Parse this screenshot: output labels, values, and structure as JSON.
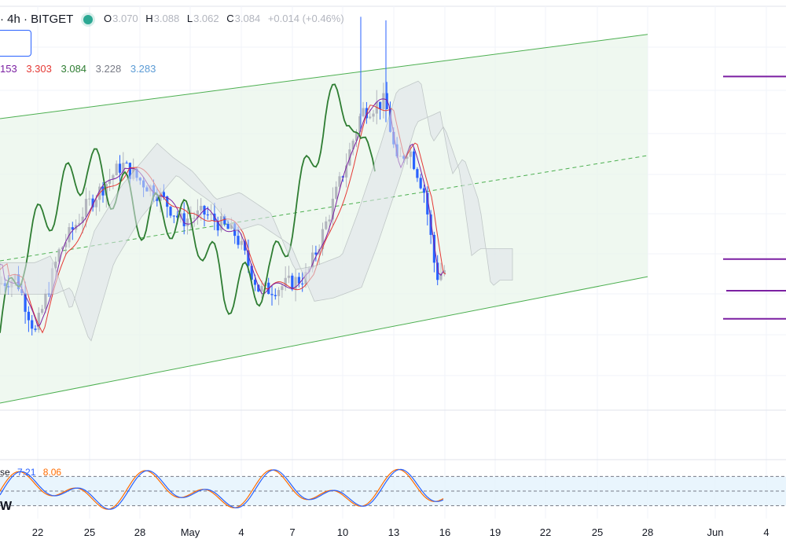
{
  "header": {
    "symbol": "· 4h · BITGET",
    "ohlc": {
      "o": "3.070",
      "h": "3.088",
      "l": "3.062",
      "c": "3.084",
      "chg": "+0.014 (+0.46%)"
    },
    "indicator_values": [
      {
        "text": "153",
        "color": "#7b1fa2"
      },
      {
        "text": "3.303",
        "color": "#e53935"
      },
      {
        "text": "3.084",
        "color": "#2e7d32"
      },
      {
        "text": "3.228",
        "color": "#787b86"
      },
      {
        "text": "3.283",
        "color": "#5b9bd5"
      }
    ]
  },
  "oscillator": {
    "label_suffix": "se",
    "k_value": "7.21",
    "d_value": "8.06",
    "k_color": "#2962ff",
    "d_color": "#ff6d00",
    "upper": 80,
    "mid": 50,
    "lower": 20
  },
  "watermark": "W",
  "colors": {
    "up": "#b2b5be",
    "down": "#2962ff",
    "channel": "#4caf50",
    "channel_fill": "#e8f5e9",
    "tenkan": "#e53935",
    "kijun": "#7b1fa2",
    "lagging": "#2e7d32",
    "cloud_up": "#c8cfc9",
    "cloud_down": "#bbdefb",
    "levels": "#7b1fa2"
  },
  "chart_data": {
    "type": "candlestick",
    "x_ticks": [
      "22",
      "25",
      "28",
      "May",
      "4",
      "7",
      "10",
      "13",
      "16",
      "19",
      "22",
      "25",
      "28",
      "Jun",
      "4"
    ],
    "price_range": [
      2.6,
      3.75
    ],
    "channel": {
      "upper_start": 3.43,
      "upper_end": 3.67,
      "lower_start": 2.62,
      "lower_end": 2.98
    },
    "horizontal_levels": [
      3.55,
      3.03,
      2.94,
      2.86
    ],
    "candles_summary": "approximately 130 four-hour candles from mid-April to May 16"
  }
}
